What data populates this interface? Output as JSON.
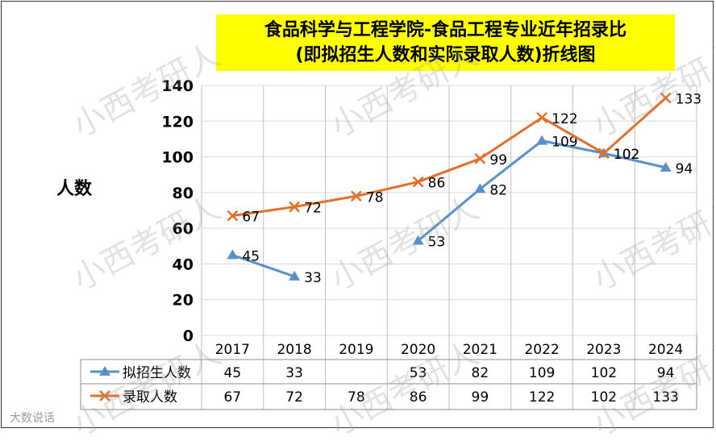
{
  "title_line1": "食品科学与工程学院-食品工程专业近年招录比",
  "title_line2": "(即拟招生人数和实际录取人数)折线图",
  "watermark_text": "小西考研人",
  "footer_text": "大数说话",
  "colors": {
    "blue": "#5b8fc9",
    "orange": "#e0702a",
    "title_bg": "#ffff00"
  },
  "chart_data": {
    "type": "line",
    "ylabel": "人数",
    "ylim": [
      0,
      140
    ],
    "yticks": [
      0,
      20,
      40,
      60,
      80,
      100,
      120,
      140
    ],
    "grid": true,
    "legend_placement": "data-table",
    "categories": [
      "2017",
      "2018",
      "2019",
      "2020",
      "2021",
      "2022",
      "2023",
      "2024"
    ],
    "series": [
      {
        "name": "拟招生人数",
        "color": "#5b8fc9",
        "marker": "triangle",
        "values": [
          45,
          33,
          null,
          53,
          82,
          109,
          102,
          94
        ]
      },
      {
        "name": "录取人数",
        "color": "#e0702a",
        "marker": "x",
        "values": [
          67,
          72,
          78,
          86,
          99,
          122,
          102,
          133
        ]
      }
    ]
  }
}
